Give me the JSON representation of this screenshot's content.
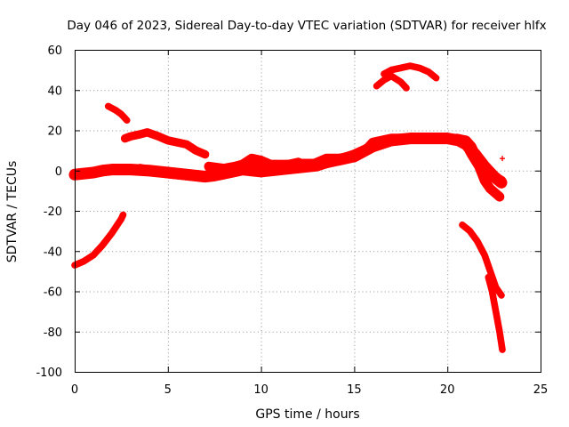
{
  "chart_data": {
    "type": "scatter",
    "title": "Day 046 of 2023, Sidereal Day-to-day VTEC variation (SDTVAR) for receiver hlfx",
    "xlabel": "GPS time / hours",
    "ylabel": "SDTVAR / TECUs",
    "xlim": [
      0,
      25
    ],
    "ylim": [
      -100,
      60
    ],
    "x_ticks": [
      0,
      5,
      10,
      15,
      20,
      25
    ],
    "y_ticks": [
      -100,
      -80,
      -60,
      -40,
      -20,
      0,
      20,
      40,
      60
    ],
    "grid": true,
    "legend": "none",
    "marker": "plus",
    "color": "#ff0000",
    "series": [
      {
        "points": [
          [
            0.0,
            -2
          ],
          [
            0.5,
            -1.5
          ],
          [
            1.0,
            -1
          ],
          [
            1.5,
            0
          ],
          [
            2.0,
            0.5
          ],
          [
            3.0,
            0.5
          ],
          [
            4.0,
            0
          ],
          [
            5.0,
            -1
          ],
          [
            6.0,
            -2
          ],
          [
            7.0,
            -3
          ],
          [
            8.0,
            -1
          ],
          [
            9.0,
            1
          ],
          [
            10.0,
            2
          ],
          [
            11.0,
            2
          ],
          [
            12.0,
            3
          ],
          [
            13.0,
            3
          ],
          [
            14.0,
            5
          ],
          [
            15.0,
            7
          ],
          [
            16.0,
            12
          ],
          [
            17.0,
            15
          ],
          [
            18.0,
            16
          ],
          [
            19.0,
            16
          ],
          [
            20.0,
            16
          ],
          [
            20.6,
            15
          ],
          [
            21.0,
            13
          ],
          [
            21.5,
            8
          ],
          [
            22.0,
            2
          ],
          [
            22.5,
            -3
          ],
          [
            22.9,
            -6
          ]
        ],
        "band": 2
      },
      {
        "points": [
          [
            3.5,
            1
          ],
          [
            4.0,
            0
          ],
          [
            5.0,
            -1.5
          ],
          [
            6.0,
            -2.5
          ],
          [
            7.0,
            -3.5
          ],
          [
            7.5,
            -3
          ],
          [
            8.0,
            -2
          ],
          [
            9.0,
            0
          ],
          [
            10.0,
            -1
          ],
          [
            11.0,
            0
          ],
          [
            12.0,
            1
          ],
          [
            13.0,
            2
          ],
          [
            14.0,
            5
          ],
          [
            15.0,
            8
          ],
          [
            15.7,
            11
          ],
          [
            16.0,
            14
          ],
          [
            17.0,
            16
          ],
          [
            18.0,
            16
          ],
          [
            19.0,
            16
          ]
        ],
        "band": 1.5
      },
      {
        "points": [
          [
            7.2,
            2
          ],
          [
            8.0,
            1
          ],
          [
            8.6,
            2
          ],
          [
            9.0,
            3
          ],
          [
            9.5,
            6
          ],
          [
            10.0,
            5
          ],
          [
            10.5,
            3
          ],
          [
            11.0,
            3
          ],
          [
            11.5,
            3
          ],
          [
            12.0,
            4
          ],
          [
            12.5,
            2
          ],
          [
            13.0,
            4
          ],
          [
            13.5,
            6
          ],
          [
            14.0,
            6
          ],
          [
            14.5,
            6
          ]
        ],
        "band": 1.5
      },
      {
        "points": [
          [
            20.5,
            16
          ],
          [
            21.0,
            15
          ],
          [
            21.3,
            12
          ],
          [
            21.6,
            6
          ],
          [
            22.0,
            1
          ],
          [
            22.5,
            -3
          ],
          [
            22.9,
            -5
          ]
        ],
        "band": 1.5
      },
      {
        "points": [
          [
            20.7,
            15
          ],
          [
            21.0,
            13
          ],
          [
            21.3,
            8
          ],
          [
            21.7,
            2
          ],
          [
            22.0,
            -5
          ],
          [
            22.3,
            -9
          ],
          [
            22.8,
            -13
          ]
        ],
        "band": 1.5
      },
      {
        "points": [
          [
            1.8,
            32
          ],
          [
            2.2,
            30
          ],
          [
            2.5,
            28
          ],
          [
            2.8,
            25
          ]
        ],
        "band": 0.8
      },
      {
        "points": [
          [
            2.7,
            16
          ],
          [
            3.0,
            17
          ],
          [
            3.5,
            18
          ],
          [
            3.9,
            19
          ],
          [
            4.5,
            17
          ],
          [
            5.0,
            15
          ],
          [
            6.0,
            13
          ],
          [
            6.5,
            10
          ],
          [
            7.0,
            8
          ]
        ],
        "band": 1.2
      },
      {
        "points": [
          [
            0.0,
            -47
          ],
          [
            0.5,
            -45
          ],
          [
            1.0,
            -42
          ],
          [
            1.5,
            -37
          ],
          [
            2.0,
            -31
          ],
          [
            2.5,
            -24
          ],
          [
            2.6,
            -22
          ]
        ],
        "band": 0.8
      },
      {
        "points": [
          [
            16.2,
            42
          ],
          [
            16.6,
            45
          ],
          [
            17.0,
            47
          ],
          [
            17.5,
            44
          ],
          [
            17.8,
            41
          ]
        ],
        "band": 0.8
      },
      {
        "points": [
          [
            16.6,
            48
          ],
          [
            17.0,
            50
          ],
          [
            17.5,
            51
          ],
          [
            18.0,
            52
          ],
          [
            18.5,
            51
          ],
          [
            19.0,
            49
          ],
          [
            19.4,
            46
          ]
        ],
        "band": 0.8
      },
      {
        "points": [
          [
            20.8,
            -27
          ],
          [
            21.2,
            -30
          ],
          [
            21.6,
            -35
          ],
          [
            22.0,
            -42
          ],
          [
            22.3,
            -50
          ],
          [
            22.6,
            -58
          ],
          [
            22.9,
            -62
          ]
        ],
        "band": 0.8
      },
      {
        "points": [
          [
            22.2,
            -53
          ],
          [
            22.4,
            -60
          ],
          [
            22.6,
            -70
          ],
          [
            22.8,
            -80
          ],
          [
            22.95,
            -89
          ]
        ],
        "band": 0.8
      },
      {
        "points": [
          [
            22.95,
            6
          ]
        ],
        "band": 0
      }
    ]
  }
}
